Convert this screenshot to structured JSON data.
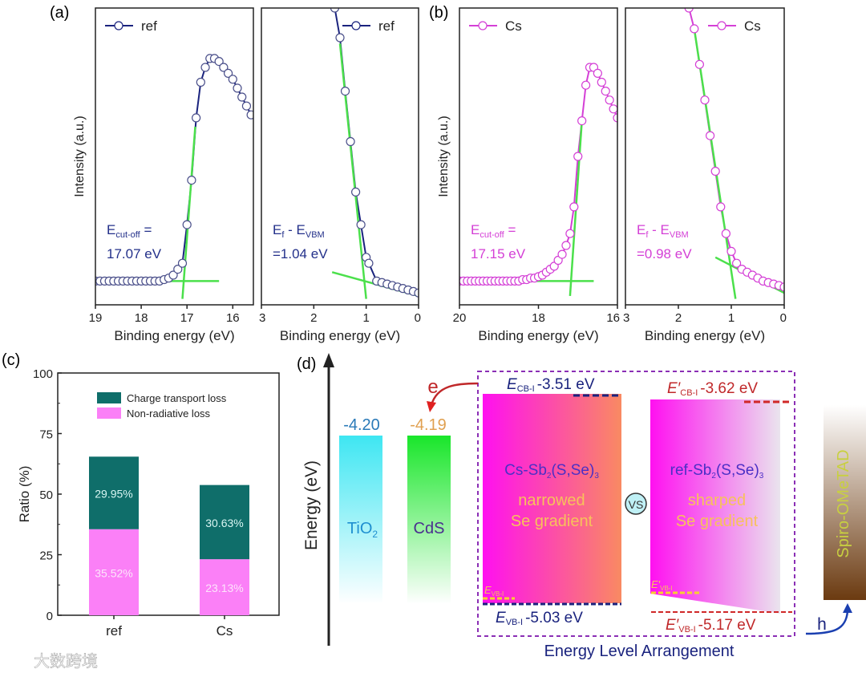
{
  "panel_labels": {
    "a": "(a)",
    "b": "(b)",
    "c": "(c)",
    "d": "(d)"
  },
  "chart_data": [
    {
      "id": "a-cutoff",
      "type": "line",
      "xlabel": "Binding energy (eV)",
      "ylabel": "Intensity (a.u.)",
      "xlim": [
        19,
        15.55
      ],
      "ylim": [
        0,
        1
      ],
      "xticks": [
        19,
        18,
        17,
        16
      ],
      "legend": "ref",
      "legend_position": "top-left",
      "color": "#1a237e",
      "annotation": [
        "E",
        "cut-off",
        " =",
        "17.07 eV"
      ],
      "x": [
        19.0,
        18.9,
        18.8,
        18.7,
        18.6,
        18.5,
        18.4,
        18.3,
        18.2,
        18.1,
        18.0,
        17.9,
        17.8,
        17.7,
        17.6,
        17.5,
        17.4,
        17.3,
        17.2,
        17.1,
        17.0,
        16.9,
        16.8,
        16.7,
        16.6,
        16.5,
        16.4,
        16.3,
        16.2,
        16.1,
        16.0,
        15.9,
        15.8,
        15.7,
        15.6
      ],
      "y": [
        0.08,
        0.08,
        0.08,
        0.08,
        0.08,
        0.08,
        0.08,
        0.08,
        0.08,
        0.08,
        0.08,
        0.08,
        0.08,
        0.08,
        0.08,
        0.085,
        0.09,
        0.1,
        0.12,
        0.14,
        0.27,
        0.42,
        0.63,
        0.75,
        0.8,
        0.83,
        0.83,
        0.82,
        0.8,
        0.78,
        0.76,
        0.73,
        0.7,
        0.67,
        0.64
      ],
      "fit_lines": [
        [
          [
            17.1,
            0.02
          ],
          [
            16.82,
            0.6
          ]
        ],
        [
          [
            19.0,
            0.08
          ],
          [
            16.3,
            0.08
          ]
        ]
      ]
    },
    {
      "id": "a-vbm",
      "type": "line",
      "xlabel": "Binding energy (eV)",
      "ylabel": "",
      "xlim": [
        3,
        0
      ],
      "ylim": [
        0,
        1
      ],
      "xticks": [
        3,
        2,
        1,
        0
      ],
      "legend": "ref",
      "legend_position": "top-right",
      "color": "#1a237e",
      "annotation": [
        "E",
        "f",
        " - E",
        "VBM",
        "=1.04 eV"
      ],
      "x": [
        1.6,
        1.5,
        1.4,
        1.3,
        1.2,
        1.1,
        1.0,
        0.95,
        0.8,
        0.7,
        0.6,
        0.5,
        0.4,
        0.3,
        0.2,
        0.1,
        0.0
      ],
      "y": [
        1.0,
        0.9,
        0.72,
        0.55,
        0.38,
        0.27,
        0.16,
        0.14,
        0.08,
        0.075,
        0.07,
        0.065,
        0.06,
        0.055,
        0.05,
        0.045,
        0.04
      ],
      "fit_lines": [
        [
          [
            1.5,
            0.88
          ],
          [
            1.0,
            0.02
          ]
        ],
        [
          [
            1.65,
            0.11
          ],
          [
            0.0,
            0.03
          ]
        ]
      ]
    },
    {
      "id": "b-cutoff",
      "type": "line",
      "xlabel": "Binding energy (eV)",
      "ylabel": "Intensity (a.u.)",
      "xlim": [
        20,
        16
      ],
      "ylim": [
        0,
        1
      ],
      "xticks": [
        20,
        18,
        16
      ],
      "legend": "Cs",
      "legend_position": "top-left",
      "color": "#d43fd6",
      "annotation": [
        "E",
        "cut-off",
        " =",
        "17.15 eV"
      ],
      "x": [
        20.0,
        19.9,
        19.8,
        19.7,
        19.6,
        19.5,
        19.4,
        19.3,
        19.2,
        19.1,
        19.0,
        18.9,
        18.8,
        18.7,
        18.6,
        18.5,
        18.4,
        18.3,
        18.2,
        18.1,
        18.0,
        17.9,
        17.8,
        17.7,
        17.6,
        17.5,
        17.4,
        17.3,
        17.2,
        17.1,
        17.0,
        16.9,
        16.8,
        16.7,
        16.6,
        16.5,
        16.4,
        16.3,
        16.2,
        16.1,
        16.0
      ],
      "y": [
        0.08,
        0.08,
        0.08,
        0.08,
        0.08,
        0.08,
        0.08,
        0.08,
        0.08,
        0.08,
        0.08,
        0.08,
        0.08,
        0.08,
        0.08,
        0.08,
        0.085,
        0.085,
        0.09,
        0.09,
        0.095,
        0.1,
        0.11,
        0.12,
        0.13,
        0.15,
        0.17,
        0.2,
        0.24,
        0.33,
        0.5,
        0.62,
        0.74,
        0.8,
        0.8,
        0.78,
        0.75,
        0.72,
        0.69,
        0.66,
        0.63
      ],
      "fit_lines": [
        [
          [
            17.2,
            0.03
          ],
          [
            16.9,
            0.62
          ]
        ],
        [
          [
            20.0,
            0.08
          ],
          [
            16.6,
            0.08
          ]
        ]
      ]
    },
    {
      "id": "b-vbm",
      "type": "line",
      "xlabel": "Binding energy (eV)",
      "ylabel": "",
      "xlim": [
        3,
        0
      ],
      "ylim": [
        0,
        1
      ],
      "xticks": [
        3,
        2,
        1,
        0
      ],
      "legend": "Cs",
      "legend_position": "top-right",
      "color": "#d43fd6",
      "annotation": [
        "E",
        "f",
        " - E",
        "VBM",
        "=0.98 eV"
      ],
      "x": [
        1.8,
        1.7,
        1.6,
        1.5,
        1.4,
        1.3,
        1.2,
        1.1,
        1.0,
        0.9,
        0.8,
        0.7,
        0.6,
        0.5,
        0.4,
        0.3,
        0.2,
        0.1,
        0.0
      ],
      "y": [
        1.0,
        0.93,
        0.81,
        0.69,
        0.57,
        0.45,
        0.33,
        0.24,
        0.18,
        0.14,
        0.12,
        0.11,
        0.1,
        0.09,
        0.08,
        0.075,
        0.07,
        0.065,
        0.06
      ],
      "fit_lines": [
        [
          [
            1.7,
            0.93
          ],
          [
            0.92,
            0.02
          ]
        ],
        [
          [
            1.3,
            0.16
          ],
          [
            0.0,
            0.04
          ]
        ]
      ]
    },
    {
      "id": "c",
      "type": "bar",
      "stacked": true,
      "xlabel": "",
      "ylabel": "Ratio (%)",
      "ylim": [
        0,
        100
      ],
      "yticks": [
        0,
        25,
        50,
        75,
        100
      ],
      "legend_position": "top-center",
      "categories": [
        "ref",
        "Cs"
      ],
      "series": [
        {
          "name": "Non-radiative loss",
          "color": "#fb80f7",
          "values": [
            35.52,
            23.13
          ],
          "labels": [
            "35.52%",
            "23.13%"
          ]
        },
        {
          "name": "Charge transport loss",
          "color": "#0f6e6a",
          "values": [
            29.95,
            30.63
          ],
          "labels": [
            "29.95%",
            "30.63%"
          ]
        }
      ]
    }
  ],
  "diagram": {
    "axis_label": "Energy (eV)",
    "tio2": {
      "label": "TiO",
      "sub": "2",
      "level": "-4.20"
    },
    "cds": {
      "label": "CdS",
      "level": "-4.19"
    },
    "electron": "e",
    "hole": "h",
    "cs": {
      "name_a": "Cs-Sb",
      "sub1": "2",
      "name_b": "(S,Se)",
      "sub2": "3",
      "desc1": "narrowed",
      "desc2": "Se gradient",
      "cb_e": "E",
      "cb_sub": "CB-I",
      "cb_val": "-3.51 eV",
      "vb_e": "E",
      "vb_sub": "VB-I",
      "vb_val": "-5.03 eV"
    },
    "vs": "VS",
    "ref": {
      "name_a": "ref-Sb",
      "sub1": "2",
      "name_b": "(S,Se)",
      "sub2": "3",
      "desc1": "sharped",
      "desc2": "Se gradient",
      "cb_e": "E′",
      "cb_sub": "CB-I",
      "cb_val": "-3.62 eV",
      "vb_e": "E′",
      "vb_sub": "VB-I",
      "vb_val": "-5.17 eV"
    },
    "spiro": "Spiro-OMeTAD",
    "caption": "Energy Level Arrangement"
  },
  "watermark": "大数跨境"
}
